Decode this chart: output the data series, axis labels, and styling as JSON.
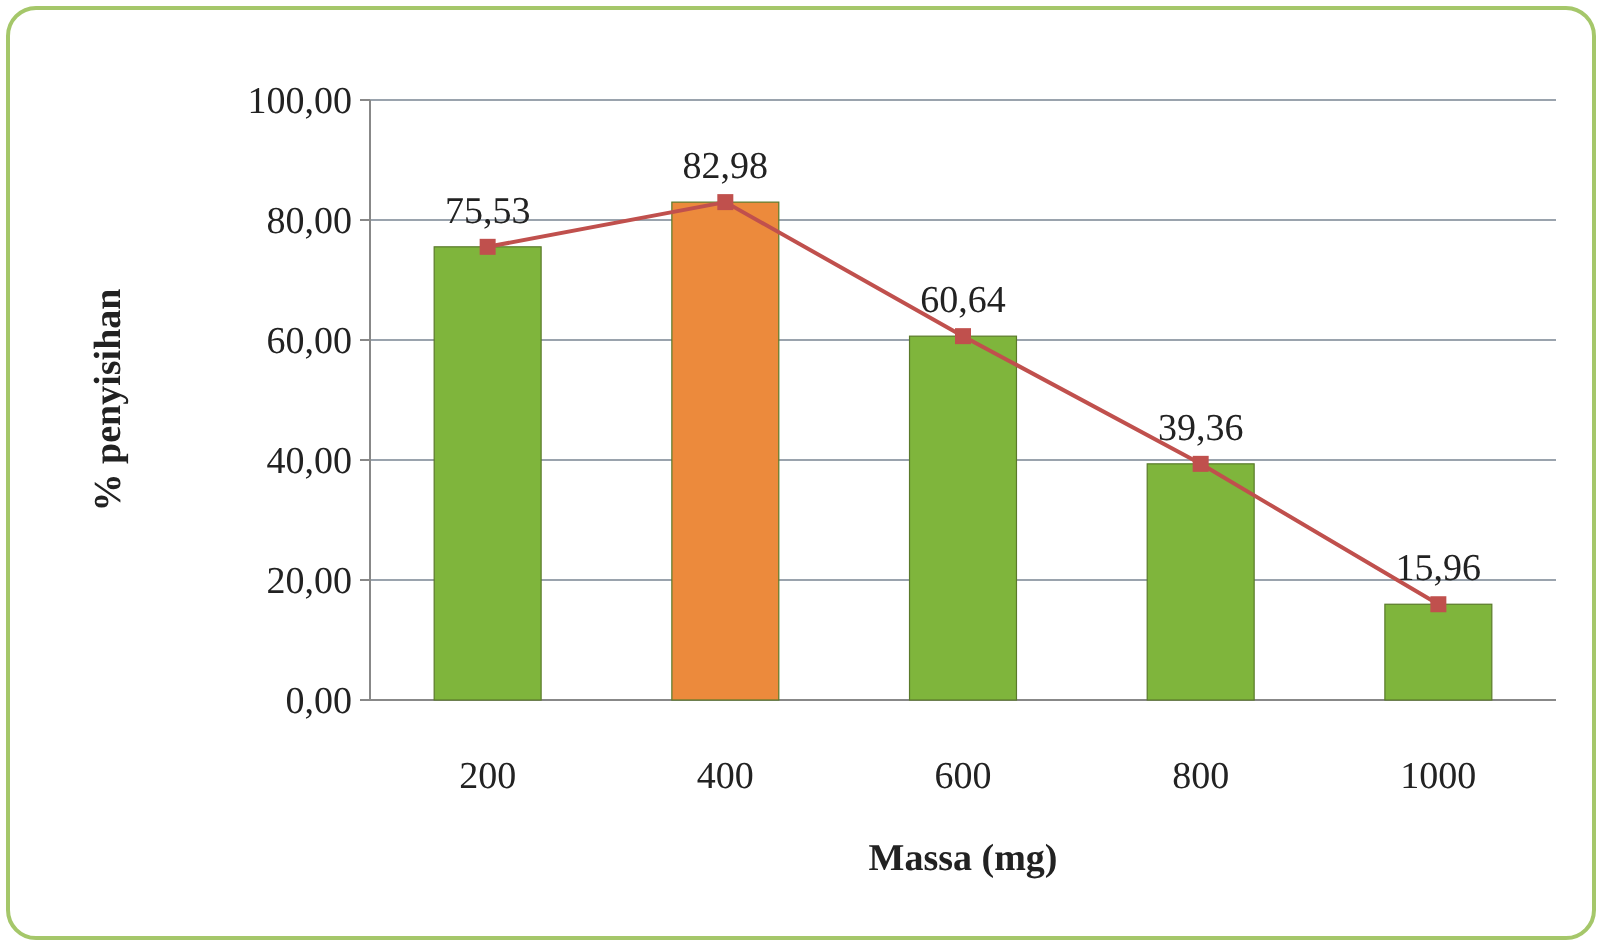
{
  "chart_data": {
    "type": "bar",
    "xlabel": "Massa (mg)",
    "ylabel": "% penyisihan",
    "categories": [
      "200",
      "400",
      "600",
      "800",
      "1000"
    ],
    "series": [
      {
        "colors": [
          "#7fb53c",
          "#ec8a3c",
          "#7fb53c",
          "#7fb53c",
          "#7fb53c"
        ],
        "values": [
          75.53,
          82.98,
          60.64,
          39.36,
          15.96
        ],
        "value_labels": [
          "75,53",
          "82,98",
          "60,64",
          "39,36",
          "15,96"
        ]
      },
      {
        "type": "line",
        "color": "#c0504d",
        "values": [
          75.53,
          82.98,
          60.64,
          39.36,
          15.96
        ],
        "marker": "square",
        "line_style": "solid"
      }
    ],
    "ylim": [
      0,
      100
    ],
    "yticks": [
      {
        "value": 0,
        "label": "0,00"
      },
      {
        "value": 20,
        "label": "20,00"
      },
      {
        "value": 40,
        "label": "40,00"
      },
      {
        "value": 60,
        "label": "60,00"
      },
      {
        "value": 80,
        "label": "80,00"
      },
      {
        "value": 100,
        "label": "100,00"
      }
    ],
    "grid": "y"
  }
}
